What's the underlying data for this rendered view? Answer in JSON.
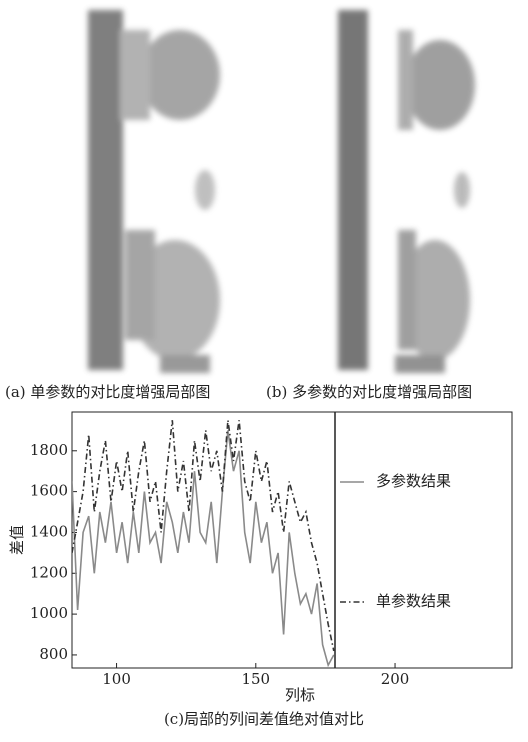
{
  "panels": [
    {
      "caption": "(a) 单参数的对比度增强局部图"
    },
    {
      "caption": "(b) 多参数的对比度增强局部图"
    }
  ],
  "chart_data": {
    "type": "line",
    "title": "(c)局部的列间差值绝对值对比",
    "x_label": "列标",
    "y_label": "差值",
    "x": [
      84,
      86,
      88,
      90,
      92,
      94,
      96,
      98,
      100,
      102,
      104,
      106,
      108,
      110,
      112,
      114,
      116,
      118,
      120,
      122,
      124,
      126,
      128,
      130,
      132,
      134,
      136,
      138,
      140,
      142,
      144,
      146,
      148,
      150,
      152,
      154,
      156,
      158,
      160,
      162,
      164,
      166,
      168,
      170,
      172,
      174,
      176,
      178
    ],
    "series": [
      {
        "name": "多参数结果",
        "color": "#8a8a8a",
        "style": "solid",
        "values": [
          1650,
          1020,
          1400,
          1480,
          1200,
          1500,
          1350,
          1550,
          1300,
          1450,
          1250,
          1500,
          1300,
          1600,
          1350,
          1400,
          1250,
          1550,
          1450,
          1300,
          1500,
          1350,
          1700,
          1400,
          1350,
          1550,
          1250,
          1600,
          1900,
          1700,
          1800,
          1400,
          1250,
          1550,
          1350,
          1450,
          1200,
          1300,
          900,
          1400,
          1200,
          1050,
          1100,
          1000,
          1150,
          850,
          750,
          800
        ]
      },
      {
        "name": "单参数结果",
        "color": "#333333",
        "style": "dashdot",
        "values": [
          1300,
          1450,
          1600,
          1880,
          1500,
          1700,
          1850,
          1550,
          1750,
          1600,
          1800,
          1500,
          1700,
          1850,
          1550,
          1650,
          1400,
          1700,
          1950,
          1600,
          1750,
          1500,
          1850,
          1650,
          1900,
          1700,
          1800,
          1600,
          1950,
          1750,
          1950,
          1650,
          1550,
          1800,
          1650,
          1750,
          1500,
          1600,
          1400,
          1650,
          1550,
          1450,
          1500,
          1350,
          1250,
          1100,
          950,
          820
        ]
      }
    ],
    "xlim": [
      84,
      242
    ],
    "ylim": [
      736,
      1990
    ],
    "xticks": [
      100,
      150,
      200
    ],
    "yticks": [
      800,
      1000,
      1200,
      1400,
      1600,
      1800
    ],
    "grid": false
  }
}
